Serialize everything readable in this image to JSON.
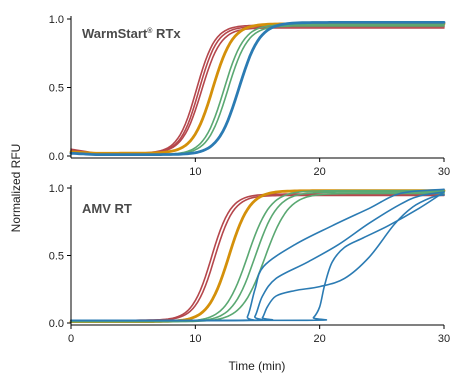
{
  "chart_data": {
    "type": "line",
    "y_axis_label": "Normalized RFU",
    "x_axis_label": "Time (min)",
    "colors": {
      "red": "#b5474c",
      "orange": "#d4900a",
      "green": "#5aa872",
      "blue": "#2b7bb3"
    },
    "panels": [
      {
        "id": "top",
        "title_main": "WarmStart",
        "title_sup": "®",
        "title_suffix": " RTx",
        "xlim": [
          0,
          30
        ],
        "ylim": [
          0,
          1
        ],
        "x_ticks": [
          {
            "value": 10,
            "label": "10"
          },
          {
            "value": 20,
            "label": "20"
          },
          {
            "value": 30,
            "label": "30"
          }
        ],
        "y_ticks": [
          {
            "value": 0,
            "label": "0.0"
          },
          {
            "value": 0.5,
            "label": "0.5"
          },
          {
            "value": 1,
            "label": "1.0"
          }
        ],
        "series": [
          {
            "color": "red",
            "width": 1.6,
            "mid": 10.1,
            "k": 1.35,
            "top": 0.955,
            "base": 0.02,
            "startBase": 0.05
          },
          {
            "color": "red",
            "width": 1.6,
            "mid": 10.3,
            "k": 1.35,
            "top": 0.945,
            "base": 0.02,
            "startBase": 0.04
          },
          {
            "color": "red",
            "width": 1.6,
            "mid": 10.5,
            "k": 1.3,
            "top": 0.935,
            "base": 0.02,
            "startBase": 0.03
          },
          {
            "color": "orange",
            "width": 2.8,
            "mid": 11.4,
            "k": 1.25,
            "top": 0.965,
            "base": 0.02,
            "startBase": 0.03
          },
          {
            "color": "green",
            "width": 1.6,
            "mid": 12.3,
            "k": 1.25,
            "top": 0.96,
            "base": 0.01,
            "startBase": 0.02
          },
          {
            "color": "green",
            "width": 1.6,
            "mid": 12.6,
            "k": 1.25,
            "top": 0.95,
            "base": 0.01,
            "startBase": 0.02
          },
          {
            "color": "blue",
            "width": 2.8,
            "mid": 13.5,
            "k": 1.2,
            "top": 0.975,
            "base": 0.01,
            "startBase": 0.02
          }
        ]
      },
      {
        "id": "bottom",
        "title_main": "AMV RT",
        "title_sup": "",
        "title_suffix": "",
        "xlim": [
          0,
          30
        ],
        "ylim": [
          0,
          1
        ],
        "x_ticks": [
          {
            "value": 0,
            "label": "0"
          },
          {
            "value": 10,
            "label": "10"
          },
          {
            "value": 20,
            "label": "20"
          },
          {
            "value": 30,
            "label": "30"
          }
        ],
        "y_ticks": [
          {
            "value": 0,
            "label": "0.0"
          },
          {
            "value": 0.5,
            "label": "0.5"
          },
          {
            "value": 1,
            "label": "1.0"
          }
        ],
        "series": [
          {
            "color": "red",
            "width": 1.6,
            "mid": 11.3,
            "k": 1.3,
            "top": 0.955,
            "base": 0.02,
            "startBase": 0.02
          },
          {
            "color": "red",
            "width": 1.6,
            "mid": 11.55,
            "k": 1.3,
            "top": 0.945,
            "base": 0.02,
            "startBase": 0.02
          },
          {
            "color": "orange",
            "width": 2.8,
            "mid": 12.7,
            "k": 1.2,
            "top": 0.98,
            "base": 0.01,
            "startBase": 0.01
          },
          {
            "color": "green",
            "width": 1.6,
            "mid": 14.2,
            "k": 1.1,
            "top": 0.98,
            "base": 0.01,
            "startBase": 0.01
          },
          {
            "color": "green",
            "width": 1.6,
            "mid": 14.8,
            "k": 1.1,
            "top": 0.97,
            "base": 0.01,
            "startBase": 0.01
          },
          {
            "color": "green",
            "width": 1.6,
            "mid": 15.6,
            "k": 1.05,
            "top": 0.96,
            "base": 0.01,
            "startBase": 0.01
          }
        ],
        "polyline_series": [
          {
            "color": "blue",
            "width": 1.6,
            "points": [
              [
                0,
                0.02
              ],
              [
                13.5,
                0.02
              ],
              [
                14.2,
                0.05
              ],
              [
                14.8,
                0.25
              ],
              [
                15.5,
                0.42
              ],
              [
                18,
                0.58
              ],
              [
                21,
                0.72
              ],
              [
                24,
                0.85
              ],
              [
                26.5,
                0.96
              ],
              [
                30,
                0.99
              ]
            ]
          },
          {
            "color": "blue",
            "width": 1.6,
            "points": [
              [
                0,
                0.02
              ],
              [
                14.2,
                0.02
              ],
              [
                14.8,
                0.05
              ],
              [
                15.4,
                0.2
              ],
              [
                16.5,
                0.33
              ],
              [
                19,
                0.45
              ],
              [
                21.5,
                0.58
              ],
              [
                24,
                0.74
              ],
              [
                26.5,
                0.88
              ],
              [
                28,
                0.94
              ],
              [
                30,
                0.97
              ]
            ]
          },
          {
            "color": "blue",
            "width": 1.6,
            "points": [
              [
                0,
                0.02
              ],
              [
                15,
                0.02
              ],
              [
                15.4,
                0.04
              ],
              [
                15.8,
                0.12
              ],
              [
                16.5,
                0.2
              ],
              [
                18,
                0.24
              ],
              [
                20,
                0.27
              ],
              [
                22,
                0.33
              ],
              [
                24,
                0.49
              ],
              [
                26,
                0.73
              ],
              [
                27.5,
                0.86
              ],
              [
                29,
                0.93
              ],
              [
                30,
                0.95
              ]
            ]
          },
          {
            "color": "blue",
            "width": 1.6,
            "points": [
              [
                0,
                0.02
              ],
              [
                19,
                0.02
              ],
              [
                19.5,
                0.04
              ],
              [
                20,
                0.12
              ],
              [
                20.4,
                0.28
              ],
              [
                21,
                0.45
              ],
              [
                22,
                0.56
              ],
              [
                23.5,
                0.63
              ],
              [
                25.5,
                0.72
              ],
              [
                28,
                0.85
              ],
              [
                30,
                0.97
              ]
            ]
          }
        ]
      }
    ]
  }
}
